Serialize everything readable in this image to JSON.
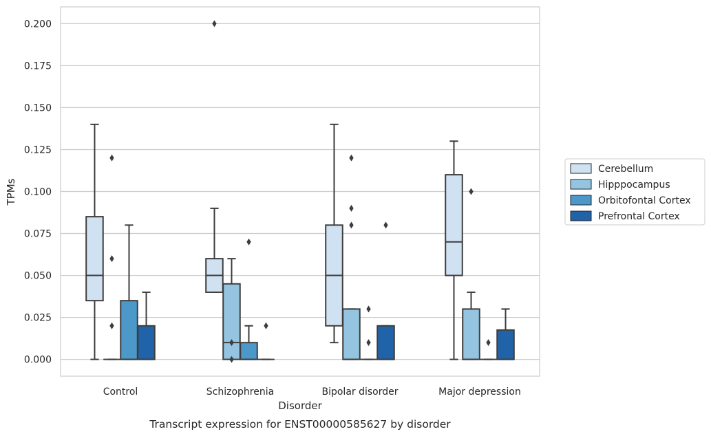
{
  "chart_data": {
    "type": "box",
    "xlabel": "Disorder",
    "ylabel": "TPMs",
    "caption": "Transcript expression for ENST00000585627 by disorder",
    "categories": [
      "Control",
      "Schizophrenia",
      "Bipolar disorder",
      "Major depression"
    ],
    "ylim": [
      -0.01,
      0.21
    ],
    "yticks": [
      0.0,
      0.025,
      0.05,
      0.075,
      0.1,
      0.125,
      0.15,
      0.175,
      0.2
    ],
    "ytick_labels": [
      "0.000",
      "0.025",
      "0.050",
      "0.075",
      "0.100",
      "0.125",
      "0.150",
      "0.175",
      "0.200"
    ],
    "grid": true,
    "legend_position": "right",
    "series": [
      {
        "name": "Cerebellum",
        "color": "#d0e1f2",
        "boxes": [
          {
            "whislo": 0.0,
            "q1": 0.035,
            "med": 0.05,
            "q3": 0.085,
            "whishi": 0.14,
            "fliers": []
          },
          {
            "whislo": 0.04,
            "q1": 0.04,
            "med": 0.05,
            "q3": 0.06,
            "whishi": 0.09,
            "fliers": [
              0.2
            ]
          },
          {
            "whislo": 0.01,
            "q1": 0.02,
            "med": 0.05,
            "q3": 0.08,
            "whishi": 0.14,
            "fliers": []
          },
          {
            "whislo": 0.0,
            "q1": 0.05,
            "med": 0.07,
            "q3": 0.11,
            "whishi": 0.13,
            "fliers": []
          }
        ]
      },
      {
        "name": "Hipppocampus",
        "color": "#94c4df",
        "boxes": [
          {
            "whislo": 0.0,
            "q1": 0.0,
            "med": 0.0,
            "q3": 0.0,
            "whishi": 0.0,
            "fliers": [
              0.02,
              0.06,
              0.12
            ]
          },
          {
            "whislo": 0.0,
            "q1": 0.0,
            "med": 0.01,
            "q3": 0.045,
            "whishi": 0.06,
            "fliers": [
              0.0,
              0.01
            ]
          },
          {
            "whislo": 0.0,
            "q1": 0.0,
            "med": 0.0,
            "q3": 0.03,
            "whishi": 0.03,
            "fliers": [
              0.08,
              0.09,
              0.12
            ]
          },
          {
            "whislo": 0.0,
            "q1": 0.0,
            "med": 0.0,
            "q3": 0.03,
            "whishi": 0.04,
            "fliers": [
              0.1
            ]
          }
        ]
      },
      {
        "name": "Orbitofontal Cortex",
        "color": "#4b98c9",
        "boxes": [
          {
            "whislo": 0.0,
            "q1": 0.0,
            "med": 0.0,
            "q3": 0.035,
            "whishi": 0.08,
            "fliers": []
          },
          {
            "whislo": 0.0,
            "q1": 0.0,
            "med": 0.0,
            "q3": 0.01,
            "whishi": 0.02,
            "fliers": [
              0.07
            ]
          },
          {
            "whislo": 0.0,
            "q1": 0.0,
            "med": 0.0,
            "q3": 0.0,
            "whishi": 0.0,
            "fliers": [
              0.01,
              0.03
            ]
          },
          {
            "whislo": 0.0,
            "q1": 0.0,
            "med": 0.0,
            "q3": 0.0,
            "whishi": 0.0,
            "fliers": [
              0.01
            ]
          }
        ]
      },
      {
        "name": "Prefrontal Cortex",
        "color": "#2163a9",
        "boxes": [
          {
            "whislo": 0.0,
            "q1": 0.0,
            "med": 0.0,
            "q3": 0.02,
            "whishi": 0.04,
            "fliers": []
          },
          {
            "whislo": 0.0,
            "q1": 0.0,
            "med": 0.0,
            "q3": 0.0,
            "whishi": 0.0,
            "fliers": [
              0.02
            ]
          },
          {
            "whislo": 0.0,
            "q1": 0.0,
            "med": 0.0,
            "q3": 0.02,
            "whishi": 0.02,
            "fliers": [
              0.08
            ]
          },
          {
            "whislo": 0.0,
            "q1": 0.0,
            "med": 0.0,
            "q3": 0.0175,
            "whishi": 0.03,
            "fliers": []
          }
        ]
      }
    ]
  }
}
